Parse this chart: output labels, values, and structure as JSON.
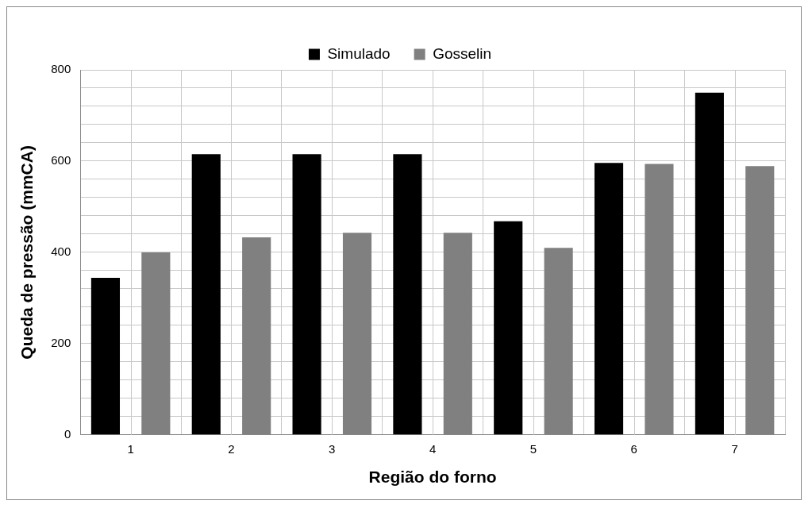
{
  "chart_data": {
    "type": "bar",
    "xlabel": "Região do forno",
    "ylabel": "Queda de pressão (mmCA)",
    "categories": [
      "1",
      "2",
      "3",
      "4",
      "5",
      "6",
      "7"
    ],
    "series": [
      {
        "name": "Simulado",
        "color": "#000000",
        "values": [
          344,
          615,
          615,
          615,
          468,
          596,
          750
        ]
      },
      {
        "name": "Gosselin",
        "color": "#808080",
        "values": [
          400,
          433,
          443,
          443,
          410,
          594,
          589
        ]
      }
    ],
    "ylim": [
      0,
      800
    ],
    "yticks": [
      0,
      {
        "value": 40,
        "label": null
      },
      {
        "value": 80,
        "label": null
      },
      {
        "value": 120,
        "label": null
      },
      {
        "value": 160,
        "label": null
      },
      200,
      {
        "value": 240,
        "label": null
      },
      {
        "value": 280,
        "label": null
      },
      {
        "value": 320,
        "label": null
      },
      {
        "value": 360,
        "label": null
      },
      400,
      {
        "value": 440,
        "label": null
      },
      {
        "value": 480,
        "label": null
      },
      {
        "value": 520,
        "label": null
      },
      {
        "value": 560,
        "label": null
      },
      600,
      {
        "value": 640,
        "label": null
      },
      {
        "value": 680,
        "label": null
      },
      {
        "value": 720,
        "label": null
      },
      {
        "value": 760,
        "label": null
      },
      800
    ],
    "grid": true,
    "legend": "top"
  }
}
